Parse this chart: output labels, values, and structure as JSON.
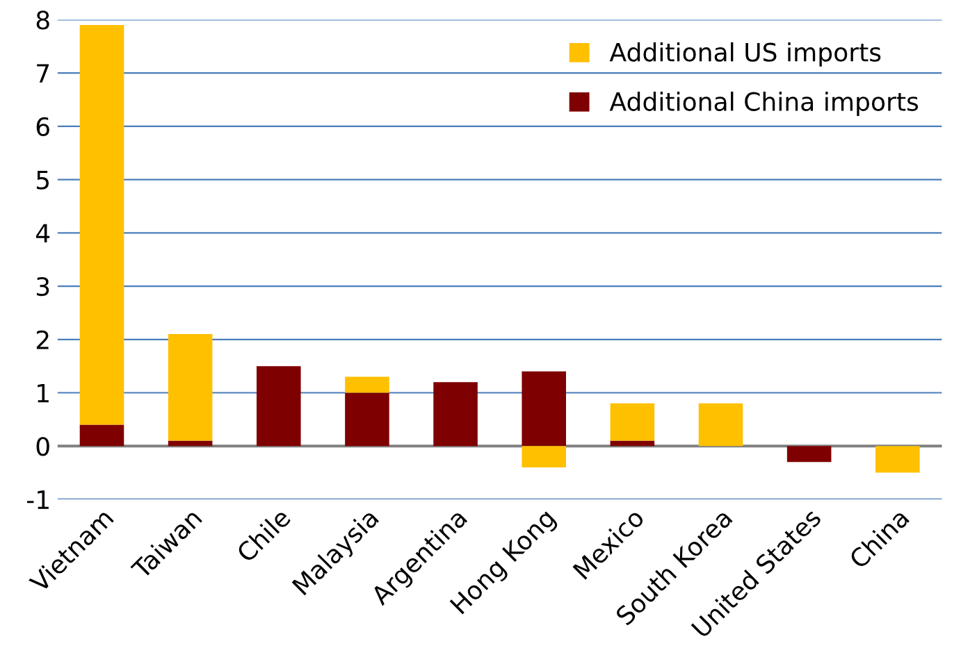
{
  "chart_data": {
    "type": "bar",
    "stacked": true,
    "categories": [
      "Vietnam",
      "Taiwan",
      "Chile",
      "Malaysia",
      "Argentina",
      "Hong Kong",
      "Mexico",
      "South Korea",
      "United States",
      "China"
    ],
    "series": [
      {
        "name": "Additional China imports",
        "color": "#7f0000",
        "values": [
          0.4,
          0.1,
          1.5,
          1.0,
          1.2,
          1.4,
          0.1,
          0,
          -0.3,
          0
        ]
      },
      {
        "name": "Additional US imports",
        "color": "#ffc000",
        "values": [
          7.5,
          2.0,
          0,
          0.3,
          0,
          -0.4,
          0.7,
          0.8,
          0,
          -0.5
        ]
      }
    ],
    "ylim": [
      -1,
      8
    ],
    "yticks": [
      -1,
      0,
      1,
      2,
      3,
      4,
      5,
      6,
      7,
      8
    ],
    "grid": "y",
    "legend": "top right"
  }
}
